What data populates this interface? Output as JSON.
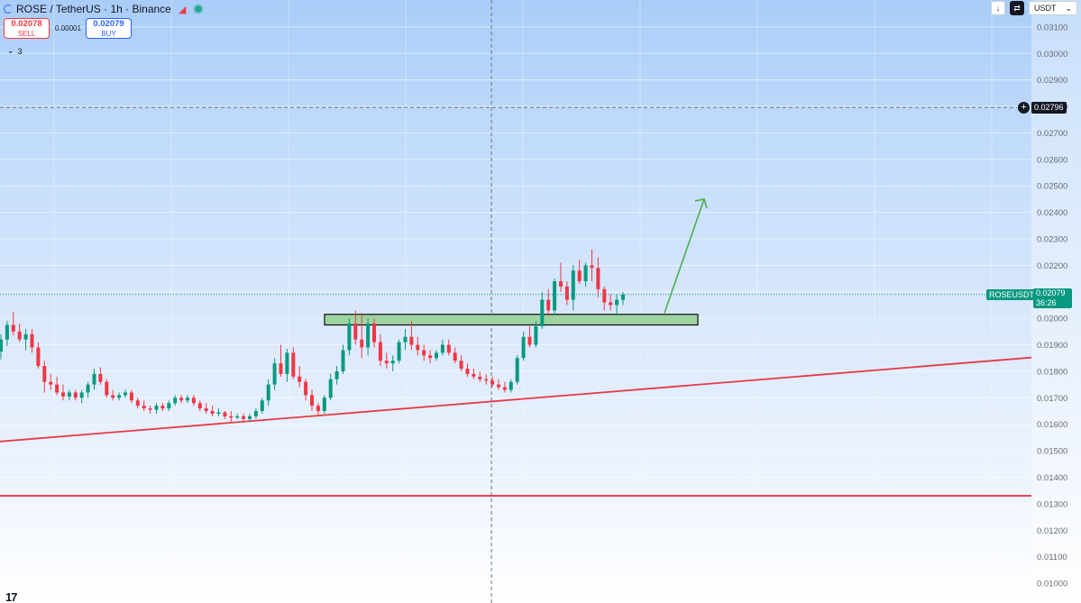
{
  "header": {
    "symbol_title": "ROSE / TetherUS · 1h · Binance",
    "sell_price": "0.02078",
    "sell_label": "SELL",
    "buy_price": "0.02079",
    "buy_label": "BUY",
    "spread": "0.00001",
    "indicators_count": "3"
  },
  "toolbar": {
    "currency": "USDT",
    "currency_chevron": "⌄",
    "arrow_icon": "↓"
  },
  "price_axis": {
    "crosshair_price": "0.02796",
    "live_price": "0.02079",
    "countdown": "36:26",
    "pair_label": "ROSEUSDT",
    "colors": {
      "up": "#089981",
      "down": "#f23645",
      "zone_fill": "#9ed3a2",
      "arrow": "#4caf50",
      "trendline": "#e53945"
    }
  },
  "chart_data": {
    "type": "candlestick",
    "symbol": "ROSE / TetherUS",
    "interval": "1h",
    "exchange": "Binance",
    "y_ticks": [
      "0.03100",
      "0.03000",
      "0.02900",
      "0.02800",
      "0.02700",
      "0.02600",
      "0.02500",
      "0.02400",
      "0.02300",
      "0.02200",
      "0.02100",
      "0.02000",
      "0.01900",
      "0.01800",
      "0.01700",
      "0.01600",
      "0.01500",
      "0.01400",
      "0.01300",
      "0.01200",
      "0.01100",
      "0.01000"
    ],
    "ylim": [
      0.0099,
      0.0312
    ],
    "grid": true,
    "horizontal_line": 0.02796,
    "vertical_crosshair_index": 79,
    "candles": [
      [
        0.01875,
        0.0194,
        0.01845,
        0.0192
      ],
      [
        0.0192,
        0.0199,
        0.01895,
        0.01975
      ],
      [
        0.01975,
        0.02025,
        0.01935,
        0.0195
      ],
      [
        0.0195,
        0.0198,
        0.0191,
        0.0192
      ],
      [
        0.0192,
        0.0196,
        0.0188,
        0.0194
      ],
      [
        0.0194,
        0.0196,
        0.0187,
        0.0189
      ],
      [
        0.0189,
        0.0191,
        0.0181,
        0.0182
      ],
      [
        0.0182,
        0.0184,
        0.0172,
        0.0176
      ],
      [
        0.0176,
        0.0179,
        0.0173,
        0.0175
      ],
      [
        0.0175,
        0.0178,
        0.0171,
        0.0172
      ],
      [
        0.0172,
        0.0175,
        0.0169,
        0.01705
      ],
      [
        0.01705,
        0.0173,
        0.0169,
        0.0172
      ],
      [
        0.0172,
        0.0173,
        0.0169,
        0.017
      ],
      [
        0.017,
        0.0173,
        0.0168,
        0.0172
      ],
      [
        0.0172,
        0.0176,
        0.017,
        0.0175
      ],
      [
        0.0175,
        0.0181,
        0.0173,
        0.0179
      ],
      [
        0.0179,
        0.01815,
        0.0175,
        0.0176
      ],
      [
        0.0176,
        0.0177,
        0.017,
        0.0171
      ],
      [
        0.0171,
        0.0173,
        0.0169,
        0.017
      ],
      [
        0.017,
        0.0172,
        0.0169,
        0.0171
      ],
      [
        0.0171,
        0.0173,
        0.017,
        0.0172
      ],
      [
        0.0172,
        0.0173,
        0.0168,
        0.0169
      ],
      [
        0.0169,
        0.017,
        0.0166,
        0.0167
      ],
      [
        0.0167,
        0.0169,
        0.0165,
        0.0166
      ],
      [
        0.0166,
        0.0167,
        0.0164,
        0.01655
      ],
      [
        0.01655,
        0.0168,
        0.0164,
        0.0167
      ],
      [
        0.0167,
        0.0168,
        0.0165,
        0.0166
      ],
      [
        0.0166,
        0.0169,
        0.0165,
        0.0168
      ],
      [
        0.0168,
        0.0171,
        0.0167,
        0.017
      ],
      [
        0.017,
        0.0171,
        0.0168,
        0.0169
      ],
      [
        0.0169,
        0.0171,
        0.0168,
        0.017
      ],
      [
        0.017,
        0.0171,
        0.0167,
        0.0168
      ],
      [
        0.0168,
        0.0169,
        0.0165,
        0.0166
      ],
      [
        0.0166,
        0.0168,
        0.0164,
        0.0165
      ],
      [
        0.0165,
        0.0167,
        0.0163,
        0.0164
      ],
      [
        0.0164,
        0.0166,
        0.0163,
        0.01645
      ],
      [
        0.01645,
        0.0165,
        0.0162,
        0.0163
      ],
      [
        0.0163,
        0.0165,
        0.0161,
        0.01625
      ],
      [
        0.01625,
        0.0164,
        0.0162,
        0.0163
      ],
      [
        0.0163,
        0.0164,
        0.0161,
        0.0162
      ],
      [
        0.0162,
        0.0164,
        0.0161,
        0.0163
      ],
      [
        0.0163,
        0.0166,
        0.0162,
        0.0165
      ],
      [
        0.0165,
        0.017,
        0.0164,
        0.0169
      ],
      [
        0.0169,
        0.0177,
        0.0167,
        0.0175
      ],
      [
        0.0175,
        0.0185,
        0.0173,
        0.0183
      ],
      [
        0.0183,
        0.019,
        0.0178,
        0.0179
      ],
      [
        0.0179,
        0.01885,
        0.0176,
        0.0187
      ],
      [
        0.0187,
        0.0189,
        0.0177,
        0.0178
      ],
      [
        0.0178,
        0.0182,
        0.0174,
        0.0176
      ],
      [
        0.0176,
        0.0177,
        0.0169,
        0.0171
      ],
      [
        0.0171,
        0.0173,
        0.0165,
        0.0167
      ],
      [
        0.0167,
        0.0168,
        0.0163,
        0.0165
      ],
      [
        0.0165,
        0.0171,
        0.0164,
        0.017
      ],
      [
        0.017,
        0.0179,
        0.0169,
        0.0177
      ],
      [
        0.0177,
        0.0182,
        0.0175,
        0.018
      ],
      [
        0.018,
        0.019,
        0.0179,
        0.0188
      ],
      [
        0.0188,
        0.02,
        0.0186,
        0.0198
      ],
      [
        0.0198,
        0.0203,
        0.019,
        0.0192
      ],
      [
        0.0192,
        0.0202,
        0.0185,
        0.0189
      ],
      [
        0.0189,
        0.02,
        0.0186,
        0.0198
      ],
      [
        0.0198,
        0.02,
        0.0189,
        0.0191
      ],
      [
        0.0191,
        0.0194,
        0.0182,
        0.0184
      ],
      [
        0.0184,
        0.0187,
        0.0181,
        0.0183
      ],
      [
        0.0183,
        0.0186,
        0.018,
        0.0184
      ],
      [
        0.0184,
        0.0192,
        0.0183,
        0.0191
      ],
      [
        0.0191,
        0.0196,
        0.0188,
        0.0193
      ],
      [
        0.0193,
        0.0199,
        0.0188,
        0.019
      ],
      [
        0.019,
        0.0193,
        0.0186,
        0.0188
      ],
      [
        0.0188,
        0.019,
        0.0184,
        0.0186
      ],
      [
        0.0186,
        0.0188,
        0.0183,
        0.0185
      ],
      [
        0.0185,
        0.0188,
        0.0184,
        0.0187
      ],
      [
        0.0187,
        0.0192,
        0.0186,
        0.019
      ],
      [
        0.019,
        0.0192,
        0.0186,
        0.0187
      ],
      [
        0.0187,
        0.0189,
        0.0183,
        0.0184
      ],
      [
        0.0184,
        0.0186,
        0.018,
        0.0181
      ],
      [
        0.0181,
        0.0183,
        0.0178,
        0.0179
      ],
      [
        0.0179,
        0.0181,
        0.0177,
        0.0178
      ],
      [
        0.0178,
        0.018,
        0.0176,
        0.0177
      ],
      [
        0.0177,
        0.0179,
        0.0175,
        0.01765
      ],
      [
        0.01765,
        0.0178,
        0.0174,
        0.0175
      ],
      [
        0.0175,
        0.0177,
        0.0173,
        0.0174
      ],
      [
        0.0174,
        0.0176,
        0.0172,
        0.0173
      ],
      [
        0.0173,
        0.0177,
        0.0172,
        0.0176
      ],
      [
        0.0176,
        0.0186,
        0.0175,
        0.0185
      ],
      [
        0.0185,
        0.0195,
        0.0184,
        0.0193
      ],
      [
        0.0193,
        0.0197,
        0.0189,
        0.019
      ],
      [
        0.019,
        0.0199,
        0.0189,
        0.0197
      ],
      [
        0.0197,
        0.021,
        0.0196,
        0.0207
      ],
      [
        0.0207,
        0.0211,
        0.0201,
        0.0203
      ],
      [
        0.0203,
        0.0215,
        0.0201,
        0.0214
      ],
      [
        0.0214,
        0.0221,
        0.021,
        0.0212
      ],
      [
        0.0212,
        0.0214,
        0.0205,
        0.0207
      ],
      [
        0.0207,
        0.022,
        0.0203,
        0.0218
      ],
      [
        0.0218,
        0.0222,
        0.0213,
        0.0214
      ],
      [
        0.0214,
        0.0221,
        0.0212,
        0.022
      ],
      [
        0.022,
        0.0226,
        0.0214,
        0.0219
      ],
      [
        0.0219,
        0.0223,
        0.0208,
        0.0211
      ],
      [
        0.0211,
        0.0212,
        0.0203,
        0.0206
      ],
      [
        0.0206,
        0.0209,
        0.0203,
        0.0205
      ],
      [
        0.0205,
        0.0209,
        0.0201,
        0.0207
      ],
      [
        0.0207,
        0.021,
        0.0205,
        0.0209
      ]
    ],
    "support_zone": [
      0.01975,
      0.02015
    ],
    "trendline": {
      "from": [
        0.01535,
        0
      ],
      "to": [
        0.01852,
        1144
      ]
    },
    "horizontal_support": 0.0133,
    "projection_arrow": {
      "from_price": 0.0202,
      "to_price": 0.0245
    }
  }
}
